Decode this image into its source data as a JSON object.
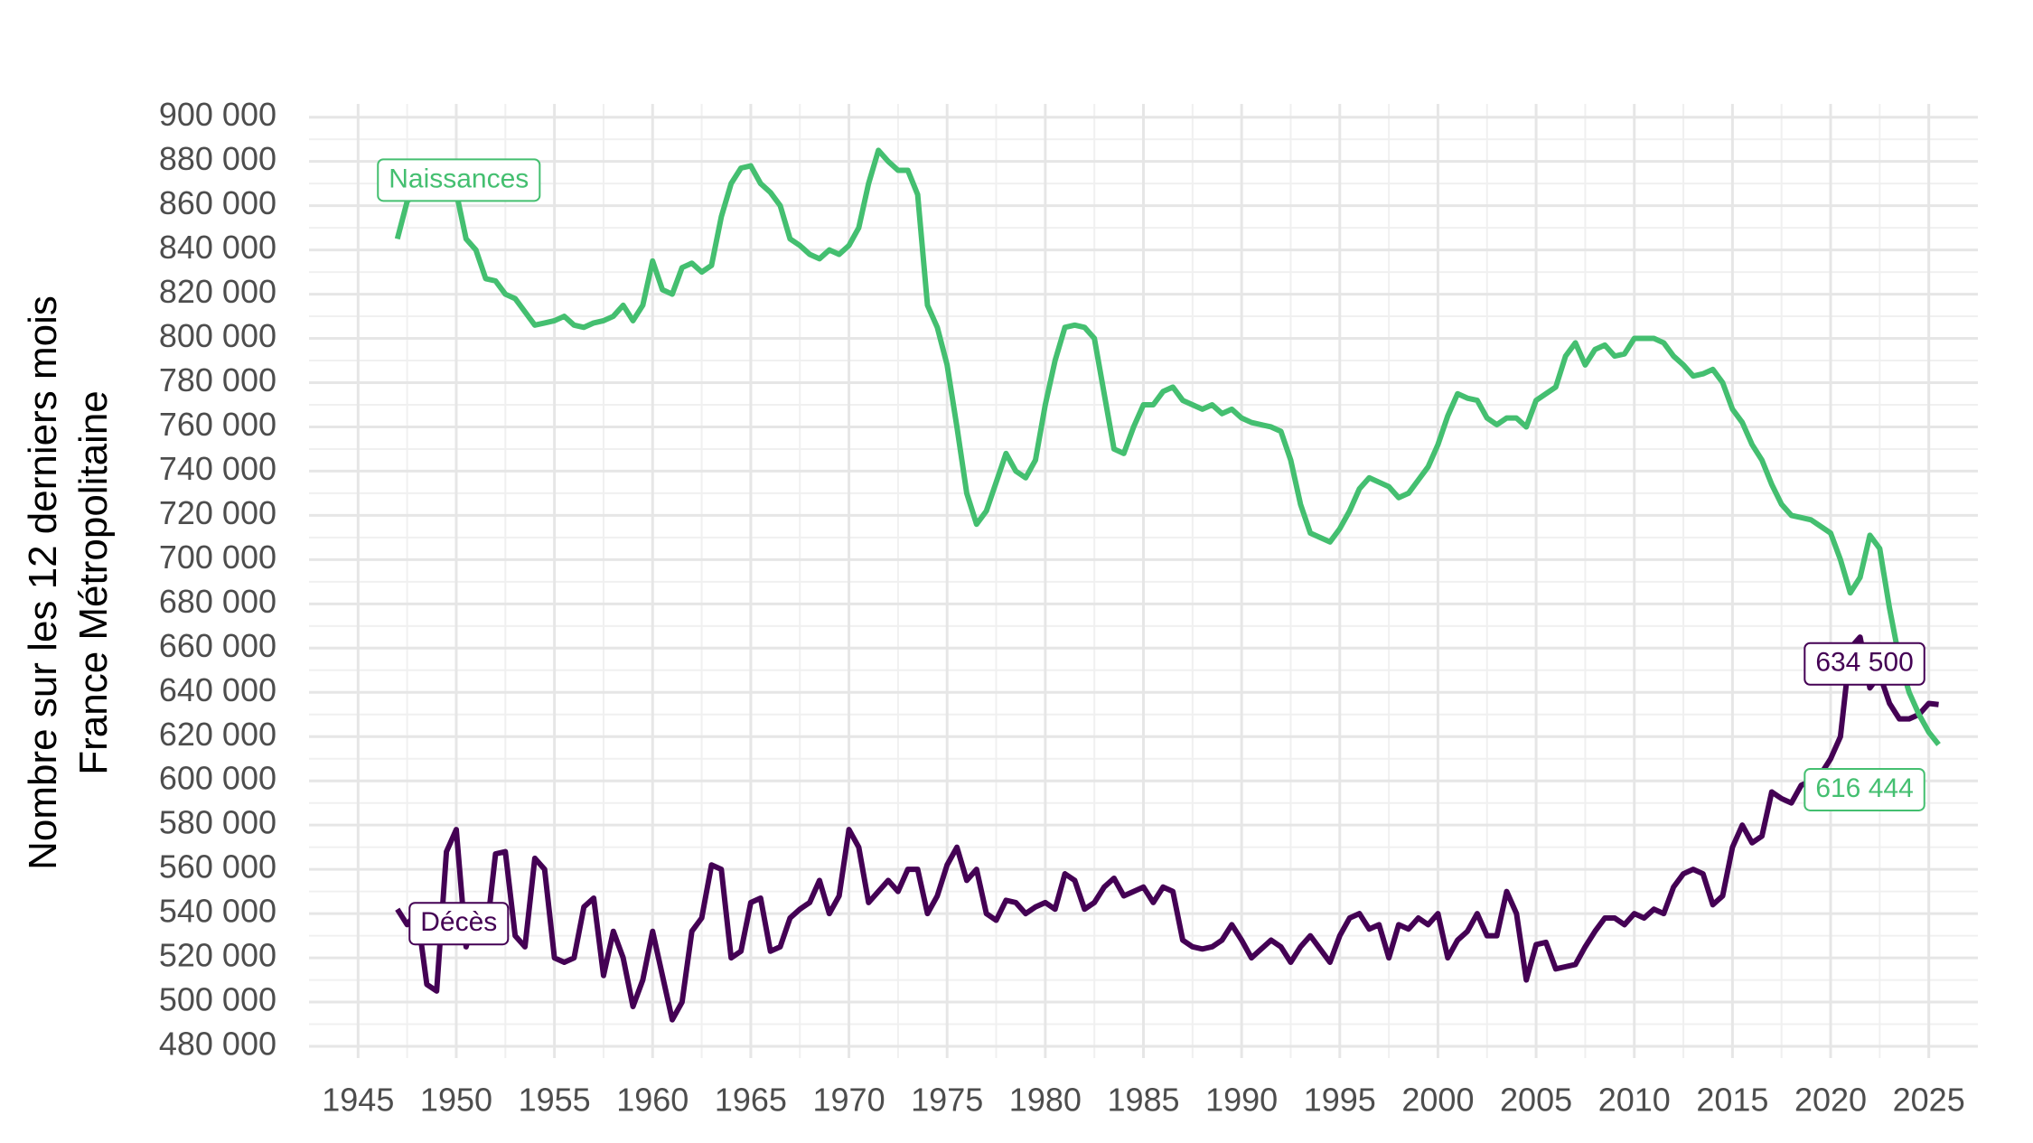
{
  "chart_data": {
    "type": "line",
    "ylabel": [
      "Nombre sur les 12 derniers mois",
      "France Métropolitaine"
    ],
    "x": [
      1947,
      1947.5,
      1948,
      1948.5,
      1949,
      1949.5,
      1950,
      1950.5,
      1951,
      1951.5,
      1952,
      1952.5,
      1953,
      1953.5,
      1954,
      1954.5,
      1955,
      1955.5,
      1956,
      1956.5,
      1957,
      1957.5,
      1958,
      1958.5,
      1959,
      1959.5,
      1960,
      1960.5,
      1961,
      1961.5,
      1962,
      1962.5,
      1963,
      1963.5,
      1964,
      1964.5,
      1965,
      1965.5,
      1966,
      1966.5,
      1967,
      1967.5,
      1968,
      1968.5,
      1969,
      1969.5,
      1970,
      1970.5,
      1971,
      1971.5,
      1972,
      1972.5,
      1973,
      1973.5,
      1974,
      1974.5,
      1975,
      1975.5,
      1976,
      1976.5,
      1977,
      1977.5,
      1978,
      1978.5,
      1979,
      1979.5,
      1980,
      1980.5,
      1981,
      1981.5,
      1982,
      1982.5,
      1983,
      1983.5,
      1984,
      1984.5,
      1985,
      1985.5,
      1986,
      1986.5,
      1987,
      1987.5,
      1988,
      1988.5,
      1989,
      1989.5,
      1990,
      1990.5,
      1991,
      1991.5,
      1992,
      1992.5,
      1993,
      1993.5,
      1994,
      1994.5,
      1995,
      1995.5,
      1996,
      1996.5,
      1997,
      1997.5,
      1998,
      1998.5,
      1999,
      1999.5,
      2000,
      2000.5,
      2001,
      2001.5,
      2002,
      2002.5,
      2003,
      2003.5,
      2004,
      2004.5,
      2005,
      2005.5,
      2006,
      2006.5,
      2007,
      2007.5,
      2008,
      2008.5,
      2009,
      2009.5,
      2010,
      2010.5,
      2011,
      2011.5,
      2012,
      2012.5,
      2013,
      2013.5,
      2014,
      2014.5,
      2015,
      2015.5,
      2016,
      2016.5,
      2017,
      2017.5,
      2018,
      2018.5,
      2019,
      2019.5,
      2020,
      2020.5,
      2021,
      2021.5,
      2022,
      2022.5,
      2023,
      2023.5,
      2024,
      2024.5,
      2025,
      2025.5
    ],
    "series": [
      {
        "name": "Décès",
        "color": "#440154",
        "last_label": "634 500",
        "values": [
          542000,
          535000,
          541000,
          508000,
          505000,
          568000,
          578000,
          525000,
          540000,
          528000,
          567000,
          568000,
          530000,
          525000,
          565000,
          560000,
          520000,
          518000,
          520000,
          543000,
          547000,
          512000,
          532000,
          520000,
          498000,
          510000,
          532000,
          512000,
          492000,
          500000,
          532000,
          538000,
          562000,
          560000,
          520000,
          523000,
          545000,
          547000,
          523000,
          525000,
          538000,
          542000,
          545000,
          555000,
          540000,
          548000,
          578000,
          570000,
          545000,
          550000,
          555000,
          550000,
          560000,
          560000,
          540000,
          548000,
          562000,
          570000,
          555000,
          560000,
          540000,
          537000,
          546000,
          545000,
          540000,
          543000,
          545000,
          542000,
          558000,
          555000,
          542000,
          545000,
          552000,
          556000,
          548000,
          550000,
          552000,
          545000,
          552000,
          550000,
          528000,
          525000,
          524000,
          525000,
          528000,
          535000,
          528000,
          520000,
          524000,
          528000,
          525000,
          518000,
          525000,
          530000,
          524000,
          518000,
          530000,
          538000,
          540000,
          533000,
          535000,
          520000,
          535000,
          533000,
          538000,
          535000,
          540000,
          520000,
          528000,
          532000,
          540000,
          530000,
          530000,
          550000,
          540000,
          510000,
          526000,
          527000,
          515000,
          516000,
          517000,
          525000,
          532000,
          538000,
          538000,
          535000,
          540000,
          538000,
          542000,
          540000,
          552000,
          558000,
          560000,
          558000,
          544000,
          548000,
          570000,
          580000,
          572000,
          575000,
          595000,
          592000,
          590000,
          598000,
          600000,
          603000,
          610000,
          620000,
          660000,
          665000,
          642000,
          648000,
          635000,
          628000,
          628000,
          630000,
          635000,
          634500
        ]
      },
      {
        "name": "Naissances",
        "color": "#44bf70",
        "last_label": "616 444",
        "values": [
          845000,
          862000,
          866000,
          868000,
          870000,
          869000,
          866000,
          845000,
          840000,
          827000,
          826000,
          820000,
          818000,
          812000,
          806000,
          807000,
          808000,
          810000,
          806000,
          805000,
          807000,
          808000,
          810000,
          815000,
          808000,
          815000,
          835000,
          822000,
          820000,
          832000,
          834000,
          830000,
          833000,
          855000,
          870000,
          877000,
          878000,
          870000,
          866000,
          860000,
          845000,
          842000,
          838000,
          836000,
          840000,
          838000,
          842000,
          850000,
          870000,
          885000,
          880000,
          876000,
          876000,
          865000,
          815000,
          805000,
          788000,
          760000,
          730000,
          716000,
          722000,
          735000,
          748000,
          740000,
          737000,
          745000,
          770000,
          790000,
          805000,
          806000,
          805000,
          800000,
          775000,
          750000,
          748000,
          760000,
          770000,
          770000,
          776000,
          778000,
          772000,
          770000,
          768000,
          770000,
          766000,
          768000,
          764000,
          762000,
          761000,
          760000,
          758000,
          745000,
          725000,
          712000,
          710000,
          708000,
          714000,
          722000,
          732000,
          737000,
          735000,
          733000,
          728000,
          730000,
          736000,
          742000,
          752000,
          765000,
          775000,
          773000,
          772000,
          764000,
          761000,
          764000,
          764000,
          760000,
          772000,
          775000,
          778000,
          792000,
          798000,
          788000,
          795000,
          797000,
          792000,
          793000,
          800000,
          800000,
          800000,
          798000,
          792000,
          788000,
          783000,
          784000,
          786000,
          780000,
          768000,
          762000,
          752000,
          745000,
          734000,
          725000,
          720000,
          719000,
          718000,
          715000,
          712000,
          700000,
          685000,
          692000,
          711000,
          705000,
          678000,
          655000,
          640000,
          630000,
          622000,
          616444
        ]
      }
    ],
    "xlim": [
      1942.5,
      2027.5
    ],
    "xticks": [
      1945,
      1950,
      1955,
      1960,
      1965,
      1970,
      1975,
      1980,
      1985,
      1990,
      1995,
      2000,
      2005,
      2010,
      2015,
      2020,
      2025
    ],
    "ylim": [
      474700,
      906000
    ],
    "yticks": [
      {
        "value": 480000,
        "label": "480 000"
      },
      {
        "value": 500000,
        "label": "500 000"
      },
      {
        "value": 520000,
        "label": "520 000"
      },
      {
        "value": 540000,
        "label": "540 000"
      },
      {
        "value": 560000,
        "label": "560 000"
      },
      {
        "value": 580000,
        "label": "580 000"
      },
      {
        "value": 600000,
        "label": "600 000"
      },
      {
        "value": 620000,
        "label": "620 000"
      },
      {
        "value": 640000,
        "label": "640 000"
      },
      {
        "value": 660000,
        "label": "660 000"
      },
      {
        "value": 680000,
        "label": "680 000"
      },
      {
        "value": 700000,
        "label": "700 000"
      },
      {
        "value": 720000,
        "label": "720 000"
      },
      {
        "value": 740000,
        "label": "740 000"
      },
      {
        "value": 760000,
        "label": "760 000"
      },
      {
        "value": 780000,
        "label": "780 000"
      },
      {
        "value": 800000,
        "label": "800 000"
      },
      {
        "value": 820000,
        "label": "820 000"
      },
      {
        "value": 840000,
        "label": "840 000"
      },
      {
        "value": 860000,
        "label": "860 000"
      },
      {
        "value": 880000,
        "label": "880 000"
      },
      {
        "value": 900000,
        "label": "900 000"
      }
    ],
    "grid": true
  }
}
